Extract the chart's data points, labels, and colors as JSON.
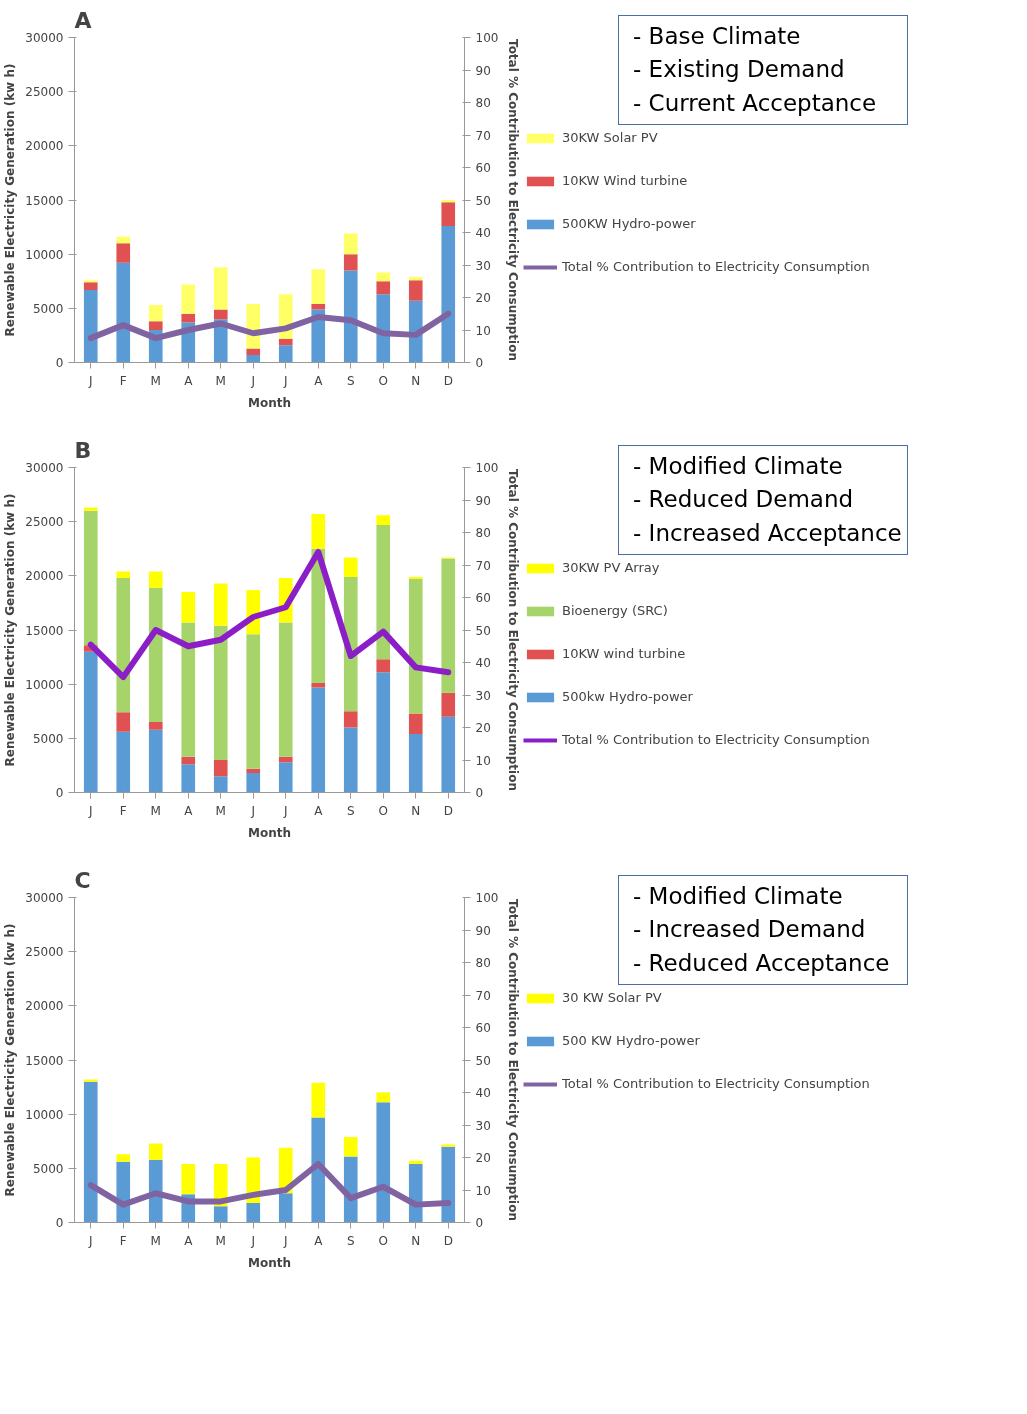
{
  "chart_data": [
    {
      "type": "bar",
      "stacked": true,
      "title": "A",
      "xlabel": "Month",
      "ylabel": "Renewable Electricity Generation (kw h)",
      "y2label": "Total % Contribution to Electricity Consumption",
      "categories": [
        "J",
        "F",
        "M",
        "A",
        "M",
        "J",
        "J",
        "A",
        "S",
        "O",
        "N",
        "D"
      ],
      "ylim": [
        0,
        30000
      ],
      "yticks": [
        0,
        5000,
        10000,
        15000,
        20000,
        25000,
        30000
      ],
      "y2lim": [
        0,
        100
      ],
      "y2ticks": [
        0,
        10,
        20,
        30,
        40,
        50,
        60,
        70,
        80,
        90,
        100
      ],
      "legend": "right",
      "annotations": [
        "- Base Climate\n- Existing Demand\n- Current Acceptance"
      ],
      "series": [
        {
          "name": "500KW Hydro-power",
          "color": "#5b9bd5",
          "values": [
            6700,
            9200,
            3000,
            3700,
            4000,
            700,
            1600,
            4900,
            8500,
            6300,
            5700,
            12600
          ]
        },
        {
          "name": "10KW Wind turbine",
          "color": "#e05252",
          "values": [
            700,
            1800,
            800,
            800,
            900,
            600,
            600,
            500,
            1500,
            1200,
            1900,
            2200
          ]
        },
        {
          "name": "30KW Solar PV",
          "color": "#ffff66",
          "values": [
            200,
            600,
            1500,
            2700,
            3900,
            4100,
            4100,
            3200,
            1900,
            800,
            300,
            200
          ]
        },
        {
          "name": "Total % Contribution to Electricity Consumption",
          "type": "line",
          "axis": "y2",
          "color": "#8064a2",
          "values": [
            7.5,
            11.5,
            7.5,
            10,
            12,
            9,
            10.5,
            14,
            13,
            9,
            8.5,
            15
          ]
        }
      ]
    },
    {
      "type": "bar",
      "stacked": true,
      "title": "B",
      "xlabel": "Month",
      "ylabel": "Renewable Electricity Generation (kw h)",
      "y2label": "Total % Contribution to Electricity Consumption",
      "categories": [
        "J",
        "F",
        "M",
        "A",
        "M",
        "J",
        "J",
        "A",
        "S",
        "O",
        "N",
        "D"
      ],
      "ylim": [
        0,
        30000
      ],
      "yticks": [
        0,
        5000,
        10000,
        15000,
        20000,
        25000,
        30000
      ],
      "y2lim": [
        0,
        100
      ],
      "y2ticks": [
        0,
        10,
        20,
        30,
        40,
        50,
        60,
        70,
        80,
        90,
        100
      ],
      "legend": "right",
      "annotations": [
        "- Modified Climate\n- Reduced Demand\n- Increased Acceptance"
      ],
      "series": [
        {
          "name": "500kw Hydro-power",
          "color": "#5b9bd5",
          "values": [
            13000,
            5600,
            5800,
            2600,
            1500,
            1800,
            2800,
            9700,
            6000,
            11100,
            5400,
            7000
          ]
        },
        {
          "name": "10KW wind turbine",
          "color": "#e05252",
          "values": [
            600,
            1800,
            700,
            700,
            1500,
            400,
            500,
            400,
            1500,
            1200,
            1900,
            2200
          ]
        },
        {
          "name": "Bioenergy (SRC)",
          "color": "#a6d46a",
          "values": [
            12400,
            12400,
            12400,
            12400,
            12400,
            12400,
            12400,
            12400,
            12400,
            12400,
            12400,
            12400
          ]
        },
        {
          "name": "30KW PV Array",
          "color": "#ffff00",
          "values": [
            300,
            600,
            1500,
            2800,
            3900,
            4100,
            4100,
            3200,
            1800,
            900,
            200,
            100
          ]
        },
        {
          "name": "Total % Contribution to Electricity Consumption",
          "type": "line",
          "axis": "y2",
          "color": "#8c1ec8",
          "values": [
            45.5,
            35.5,
            50,
            45,
            47,
            54,
            57,
            74,
            42,
            49.5,
            38.5,
            37
          ]
        }
      ]
    },
    {
      "type": "bar",
      "stacked": true,
      "title": "C",
      "xlabel": "Month",
      "ylabel": "Renewable Electricity Generation (kw h)",
      "y2label": "Total % Contribution to Electricity Consumption",
      "categories": [
        "J",
        "F",
        "M",
        "A",
        "M",
        "J",
        "J",
        "A",
        "S",
        "O",
        "N",
        "D"
      ],
      "ylim": [
        0,
        30000
      ],
      "yticks": [
        0,
        5000,
        10000,
        15000,
        20000,
        25000,
        30000
      ],
      "y2lim": [
        0,
        100
      ],
      "y2ticks": [
        0,
        10,
        20,
        30,
        40,
        50,
        60,
        70,
        80,
        90,
        100
      ],
      "legend": "right",
      "annotations": [
        "- Modified Climate\n- Increased Demand\n- Reduced Acceptance"
      ],
      "series": [
        {
          "name": "500 KW Hydro-power",
          "color": "#5b9bd5",
          "values": [
            13000,
            5600,
            5800,
            2600,
            1500,
            1800,
            2700,
            9700,
            6100,
            11100,
            5400,
            7000
          ]
        },
        {
          "name": "30 KW Solar PV",
          "color": "#ffff00",
          "values": [
            200,
            700,
            1500,
            2800,
            3900,
            4200,
            4200,
            3200,
            1800,
            900,
            300,
            200
          ]
        },
        {
          "name": "Total % Contribution to Electricity Consumption",
          "type": "line",
          "axis": "y2",
          "color": "#8064a2",
          "values": [
            11.5,
            5.5,
            9,
            6.5,
            6.5,
            8.5,
            10,
            18,
            7.5,
            11,
            5.5,
            6
          ]
        }
      ]
    }
  ]
}
